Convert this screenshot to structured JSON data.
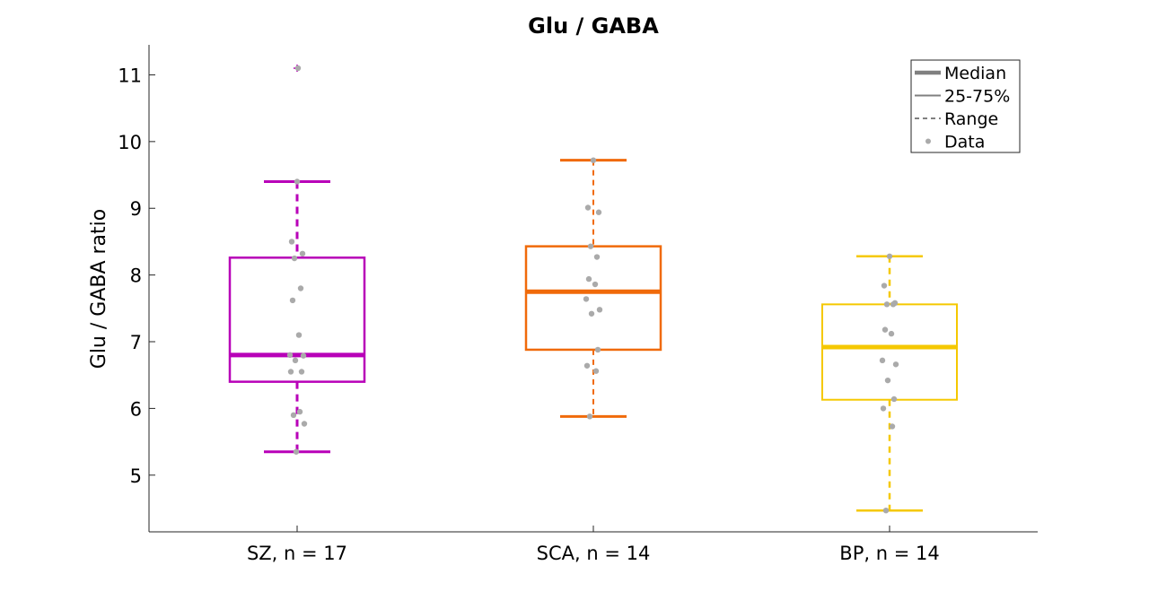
{
  "chart_data": {
    "type": "box",
    "title": "Glu / GABA",
    "xlabel": "",
    "ylabel": "Glu / GABA ratio",
    "ylim": [
      4.15,
      11.45
    ],
    "yticks": [
      5,
      6,
      7,
      8,
      9,
      10,
      11
    ],
    "grid": false,
    "legend_position": "top-right",
    "legend": [
      {
        "label": "Median",
        "style": "thick"
      },
      {
        "label": "25-75%",
        "style": "solid"
      },
      {
        "label": "Range",
        "style": "dashed"
      },
      {
        "label": "Data",
        "style": "dot"
      }
    ],
    "categories": [
      "SZ, n = 17",
      "SCA, n = 14",
      "BP, n = 14"
    ],
    "series": [
      {
        "color": "#b800b8",
        "min": 5.35,
        "q1": 6.4,
        "median": 6.8,
        "q3": 8.26,
        "max": 9.4,
        "outliers": [
          11.1
        ],
        "points": [
          9.4,
          8.5,
          8.32,
          8.25,
          7.8,
          7.62,
          7.1,
          6.8,
          6.79,
          6.72,
          6.55,
          6.55,
          5.95,
          5.9,
          5.77,
          5.35,
          11.1
        ]
      },
      {
        "color": "#f06a0a",
        "min": 5.88,
        "q1": 6.88,
        "median": 7.75,
        "q3": 8.43,
        "max": 9.72,
        "outliers": [],
        "points": [
          9.72,
          9.01,
          8.94,
          8.43,
          8.27,
          7.94,
          7.86,
          7.64,
          7.48,
          7.42,
          6.88,
          6.64,
          6.56,
          5.88
        ]
      },
      {
        "color": "#f5c800",
        "min": 4.47,
        "q1": 6.13,
        "median": 6.92,
        "q3": 7.56,
        "max": 8.28,
        "outliers": [],
        "points": [
          8.28,
          7.84,
          7.58,
          7.56,
          7.56,
          7.18,
          7.12,
          6.72,
          6.66,
          6.42,
          6.14,
          6.0,
          5.73,
          4.47
        ]
      }
    ]
  }
}
